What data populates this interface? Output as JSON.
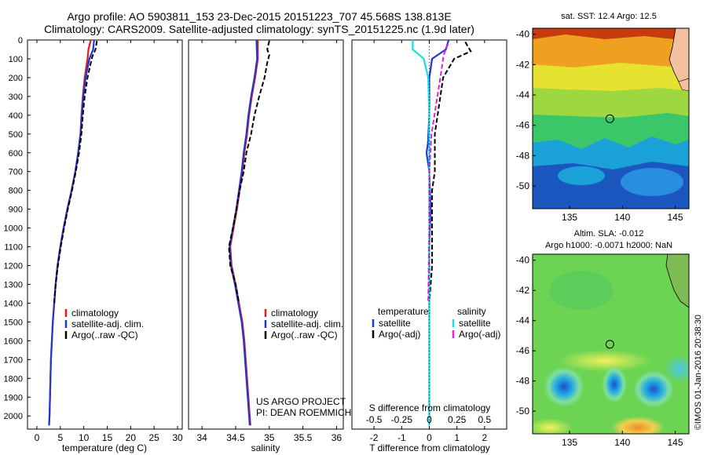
{
  "header": {
    "line1": "Argo profile: AO 5903811_153 23-Dec-2015 20151223_707 45.568S 138.813E",
    "line2": "Climatology: CARS2009. Satellite-adjusted climatology: synTS_20151225.nc (1.9d later)"
  },
  "chart_data": [
    {
      "type": "line",
      "panel": "temperature",
      "xlabel": "temperature (deg C)",
      "ylabel": "",
      "xlim": [
        -2,
        31
      ],
      "ylim": [
        2070,
        0
      ],
      "xticks": [
        "0",
        "5",
        "10",
        "15",
        "20",
        "25",
        "30"
      ],
      "yticks": [
        "0",
        "100",
        "200",
        "300",
        "400",
        "500",
        "600",
        "700",
        "800",
        "900",
        "1000",
        "1100",
        "1200",
        "1300",
        "1400",
        "1500",
        "1600",
        "1700",
        "1800",
        "1900",
        "2000"
      ],
      "legend": {
        "items": [
          "climatology",
          "satellite-adj. clim.",
          "Argo(..raw -QC)"
        ]
      },
      "series": [
        {
          "name": "climatology",
          "color": "#e41a1c",
          "style": "solid",
          "points": [
            [
              11.5,
              0
            ],
            [
              11.0,
              50
            ],
            [
              10.8,
              100
            ],
            [
              10.2,
              200
            ],
            [
              9.8,
              300
            ],
            [
              9.5,
              400
            ],
            [
              9.3,
              500
            ],
            [
              8.8,
              600
            ],
            [
              8.2,
              700
            ],
            [
              7.4,
              800
            ],
            [
              6.5,
              900
            ],
            [
              5.7,
              1000
            ],
            [
              5.0,
              1100
            ],
            [
              4.4,
              1200
            ],
            [
              4.0,
              1300
            ],
            [
              3.7,
              1400
            ],
            [
              3.4,
              1500
            ],
            [
              3.2,
              1600
            ],
            [
              3.0,
              1700
            ],
            [
              2.9,
              1800
            ],
            [
              2.8,
              1900
            ],
            [
              2.7,
              2000
            ],
            [
              2.6,
              2050
            ]
          ]
        },
        {
          "name": "satellite-adj. clim.",
          "color": "#1f35d6",
          "style": "solid",
          "points": [
            [
              12.2,
              0
            ],
            [
              12.0,
              50
            ],
            [
              11.2,
              100
            ],
            [
              10.4,
              200
            ],
            [
              9.9,
              300
            ],
            [
              9.6,
              400
            ],
            [
              9.3,
              500
            ],
            [
              8.8,
              600
            ],
            [
              8.2,
              700
            ],
            [
              7.4,
              800
            ],
            [
              6.5,
              900
            ],
            [
              5.7,
              1000
            ],
            [
              5.0,
              1100
            ],
            [
              4.4,
              1200
            ],
            [
              4.0,
              1300
            ],
            [
              3.7,
              1400
            ],
            [
              3.4,
              1500
            ],
            [
              3.2,
              1600
            ],
            [
              3.0,
              1700
            ],
            [
              2.9,
              1800
            ],
            [
              2.8,
              1900
            ],
            [
              2.7,
              2000
            ],
            [
              2.6,
              2050
            ]
          ]
        },
        {
          "name": "Argo(..raw -QC)",
          "color": "#000000",
          "style": "dashed",
          "points": [
            [
              12.8,
              5
            ],
            [
              12.5,
              50
            ],
            [
              11.8,
              90
            ],
            [
              11.6,
              110
            ],
            [
              10.8,
              200
            ],
            [
              10.2,
              300
            ],
            [
              9.8,
              400
            ],
            [
              9.5,
              500
            ],
            [
              9.0,
              600
            ],
            [
              8.3,
              700
            ],
            [
              7.5,
              800
            ],
            [
              6.6,
              900
            ],
            [
              5.8,
              1000
            ],
            [
              5.1,
              1100
            ],
            [
              4.5,
              1200
            ],
            [
              4.0,
              1300
            ],
            [
              3.7,
              1400
            ]
          ]
        }
      ]
    },
    {
      "type": "line",
      "panel": "salinity",
      "xlabel": "salinity",
      "ylabel": "",
      "xlim": [
        33.8,
        36.1
      ],
      "ylim": [
        2070,
        0
      ],
      "xticks": [
        "34",
        "34.5",
        "35",
        "35.5",
        "36"
      ],
      "legend": {
        "items": [
          "climatology",
          "satellite-adj. clim.",
          "Argo(..raw -QC)"
        ]
      },
      "annotations": [
        "US ARGO PROJECT",
        "PI: DEAN ROEMMICH"
      ],
      "series": [
        {
          "name": "climatology",
          "color": "#e41a1c",
          "style": "solid",
          "points": [
            [
              34.83,
              0
            ],
            [
              34.83,
              100
            ],
            [
              34.79,
              200
            ],
            [
              34.74,
              300
            ],
            [
              34.7,
              400
            ],
            [
              34.67,
              500
            ],
            [
              34.63,
              600
            ],
            [
              34.6,
              700
            ],
            [
              34.56,
              800
            ],
            [
              34.52,
              900
            ],
            [
              34.47,
              1000
            ],
            [
              34.42,
              1100
            ],
            [
              34.44,
              1200
            ],
            [
              34.5,
              1300
            ],
            [
              34.55,
              1400
            ],
            [
              34.6,
              1500
            ],
            [
              34.63,
              1600
            ],
            [
              34.65,
              1700
            ],
            [
              34.67,
              1800
            ],
            [
              34.69,
              1900
            ],
            [
              34.71,
              2000
            ],
            [
              34.72,
              2050
            ]
          ]
        },
        {
          "name": "satellite-adj. clim.",
          "color": "#1f35d6",
          "style": "solid",
          "points": [
            [
              34.81,
              0
            ],
            [
              34.82,
              100
            ],
            [
              34.78,
              200
            ],
            [
              34.73,
              300
            ],
            [
              34.69,
              400
            ],
            [
              34.66,
              500
            ],
            [
              34.62,
              600
            ],
            [
              34.59,
              700
            ],
            [
              34.55,
              800
            ],
            [
              34.51,
              900
            ],
            [
              34.46,
              1000
            ],
            [
              34.41,
              1100
            ],
            [
              34.43,
              1200
            ],
            [
              34.49,
              1300
            ],
            [
              34.54,
              1400
            ],
            [
              34.59,
              1500
            ],
            [
              34.62,
              1600
            ],
            [
              34.64,
              1700
            ],
            [
              34.66,
              1800
            ],
            [
              34.68,
              1900
            ],
            [
              34.7,
              2000
            ],
            [
              34.71,
              2050
            ]
          ]
        },
        {
          "name": "Argo(..raw -QC)",
          "color": "#000000",
          "style": "dashed",
          "points": [
            [
              35.0,
              5
            ],
            [
              34.97,
              50
            ],
            [
              35.0,
              80
            ],
            [
              34.97,
              120
            ],
            [
              34.93,
              200
            ],
            [
              34.85,
              300
            ],
            [
              34.78,
              400
            ],
            [
              34.73,
              500
            ],
            [
              34.66,
              600
            ],
            [
              34.62,
              700
            ],
            [
              34.56,
              800
            ],
            [
              34.51,
              900
            ],
            [
              34.46,
              1000
            ],
            [
              34.4,
              1100
            ],
            [
              34.42,
              1200
            ],
            [
              34.5,
              1300
            ],
            [
              34.55,
              1400
            ]
          ]
        }
      ]
    },
    {
      "type": "line",
      "panel": "difference",
      "xlabel": "T difference from climatology",
      "xlabel_secondary": "S difference from climatology",
      "xlim": [
        -2.8,
        2.8
      ],
      "ylim": [
        2070,
        0
      ],
      "xticks": [
        "-2",
        "-1",
        "0",
        "1",
        "2"
      ],
      "xticks_secondary": [
        "-0.5",
        "-0.25",
        "0",
        "0.25",
        "0.5"
      ],
      "legend": {
        "headers": [
          "temperature",
          "salinity"
        ],
        "items": [
          "satellite",
          "Argo(-adj)",
          "satellite",
          "Argo(-adj)"
        ]
      },
      "series": [
        {
          "name": "satellite",
          "quantity": "temperature",
          "color": "#1f35d6",
          "style": "solid",
          "points": [
            [
              0.7,
              0
            ],
            [
              0.6,
              50
            ],
            [
              0.1,
              100
            ],
            [
              0.0,
              200
            ],
            [
              0.0,
              400
            ],
            [
              -0.05,
              550
            ],
            [
              -0.1,
              600
            ],
            [
              0.0,
              700
            ],
            [
              0.05,
              900
            ],
            [
              0.0,
              1100
            ],
            [
              0.0,
              1400
            ],
            [
              0.0,
              1700
            ],
            [
              0.0,
              2050
            ]
          ]
        },
        {
          "name": "Argo(-adj)",
          "quantity": "temperature",
          "color": "#000000",
          "style": "dashed",
          "points": [
            [
              1.3,
              10
            ],
            [
              1.5,
              60
            ],
            [
              0.9,
              100
            ],
            [
              0.5,
              200
            ],
            [
              0.4,
              300
            ],
            [
              0.3,
              400
            ],
            [
              0.2,
              500
            ],
            [
              0.2,
              600
            ],
            [
              0.2,
              700
            ],
            [
              0.1,
              800
            ],
            [
              0.1,
              900
            ],
            [
              0.1,
              1000
            ],
            [
              0.1,
              1100
            ],
            [
              0.1,
              1200
            ],
            [
              0.05,
              1300
            ],
            [
              0.0,
              1400
            ]
          ]
        },
        {
          "name": "satellite",
          "quantity": "salinity",
          "color": "#17e0e0",
          "style": "solid",
          "points": [
            [
              -0.15,
              0
            ],
            [
              -0.15,
              50
            ],
            [
              -0.05,
              100
            ],
            [
              -0.01,
              200
            ],
            [
              0.0,
              400
            ],
            [
              0.0,
              800
            ],
            [
              0.0,
              1200
            ],
            [
              0.0,
              1600
            ],
            [
              0.0,
              2050
            ]
          ]
        },
        {
          "name": "Argo(-adj)",
          "quantity": "salinity",
          "color": "#e020e0",
          "style": "dashed",
          "points": [
            [
              0.17,
              20
            ],
            [
              0.13,
              80
            ],
            [
              0.1,
              200
            ],
            [
              0.06,
              350
            ],
            [
              0.02,
              500
            ],
            [
              0.0,
              700
            ],
            [
              0.0,
              1000
            ],
            [
              -0.01,
              1400
            ]
          ]
        }
      ]
    },
    {
      "type": "heatmap",
      "panel": "sst-map",
      "title": "sat. SST: 12.4  Argo: 12.5",
      "xticks": [
        "135",
        "140",
        "145"
      ],
      "yticks": [
        "-40",
        "-42",
        "-44",
        "-46",
        "-48",
        "-50"
      ],
      "xlim": [
        131.5,
        146.3
      ],
      "ylim": [
        -51.5,
        -39.6
      ],
      "marker": {
        "lon": 138.813,
        "lat": -45.568
      }
    },
    {
      "type": "heatmap",
      "panel": "sla-map",
      "title": "Altim. SLA: -0.012",
      "subtitle": "Argo h1000: -0.0071 h2000: NaN",
      "xticks": [
        "135",
        "140",
        "145"
      ],
      "yticks": [
        "-40",
        "-42",
        "-44",
        "-46",
        "-48",
        "-50"
      ],
      "xlim": [
        131.5,
        146.3
      ],
      "ylim": [
        -51.5,
        -39.6
      ],
      "marker": {
        "lon": 138.813,
        "lat": -45.568
      }
    }
  ],
  "side_text": "©IMOS 01-Jan-2016 20:38:30",
  "colors": {
    "red": "#e41a1c",
    "blue": "#1f35d6",
    "cyan": "#17e0e0",
    "magenta": "#e020e0",
    "land": "#f4c1a0"
  }
}
